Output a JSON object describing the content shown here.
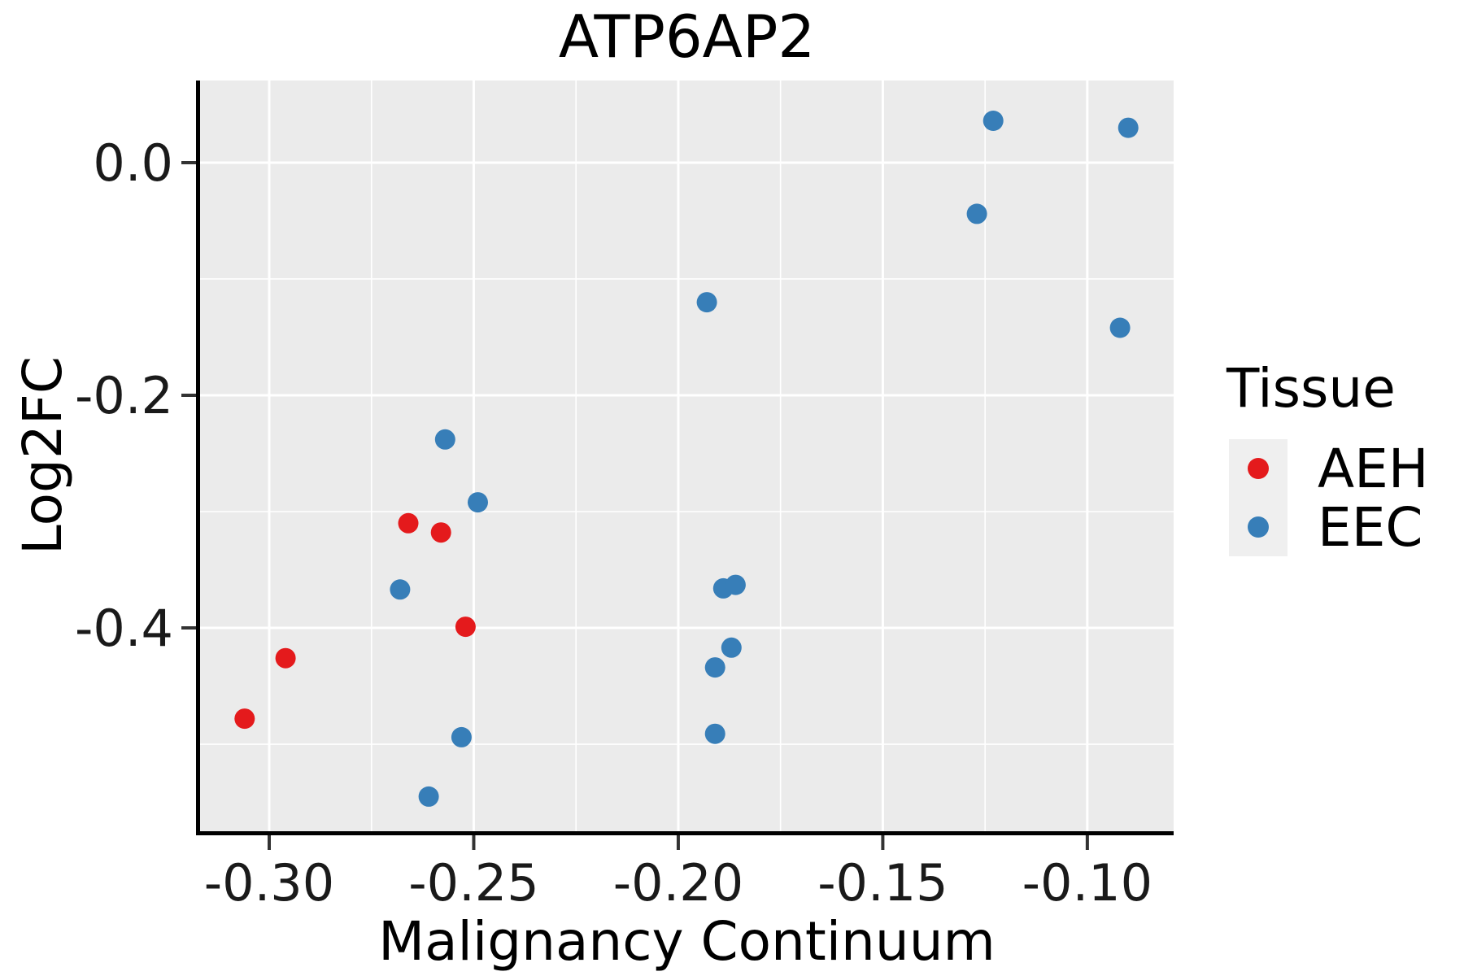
{
  "chart_data": {
    "type": "scatter",
    "title": "ATP6AP2",
    "xlabel": "Malignancy Continuum",
    "ylabel": "Log2FC",
    "legend_title": "Tissue",
    "legend_position": "right-center",
    "panel_background": "#EBEBEB",
    "grid_color": "#FFFFFF",
    "grid": "major and minor, on",
    "xlim": [
      -0.3169,
      -0.0789
    ],
    "ylim": [
      -0.5748,
      0.0706
    ],
    "x_ticks": [
      -0.3,
      -0.25,
      -0.2,
      -0.15,
      -0.1
    ],
    "x_tick_labels": [
      "-0.30",
      "-0.25",
      "-0.20",
      "-0.15",
      "-0.10"
    ],
    "x_minor_ticks": [
      -0.275,
      -0.225,
      -0.175,
      -0.125
    ],
    "y_ticks": [
      0.0,
      -0.2,
      -0.4
    ],
    "y_tick_labels": [
      "0.0",
      "-0.2",
      "-0.4"
    ],
    "y_minor_ticks": [
      -0.1,
      -0.3,
      -0.5
    ],
    "series": [
      {
        "name": "AEH",
        "color": "#E41A1C",
        "points": [
          [
            -0.306,
            -0.478
          ],
          [
            -0.296,
            -0.426
          ],
          [
            -0.266,
            -0.31
          ],
          [
            -0.258,
            -0.318
          ],
          [
            -0.252,
            -0.399
          ]
        ]
      },
      {
        "name": "EEC",
        "color": "#377EB8",
        "points": [
          [
            -0.268,
            -0.367
          ],
          [
            -0.261,
            -0.545
          ],
          [
            -0.257,
            -0.238
          ],
          [
            -0.253,
            -0.494
          ],
          [
            -0.249,
            -0.292
          ],
          [
            -0.193,
            -0.12
          ],
          [
            -0.191,
            -0.434
          ],
          [
            -0.191,
            -0.491
          ],
          [
            -0.189,
            -0.366
          ],
          [
            -0.186,
            -0.363
          ],
          [
            -0.187,
            -0.417
          ],
          [
            -0.127,
            -0.044
          ],
          [
            -0.123,
            0.036
          ],
          [
            -0.092,
            -0.142
          ],
          [
            -0.09,
            0.03
          ]
        ]
      }
    ]
  }
}
